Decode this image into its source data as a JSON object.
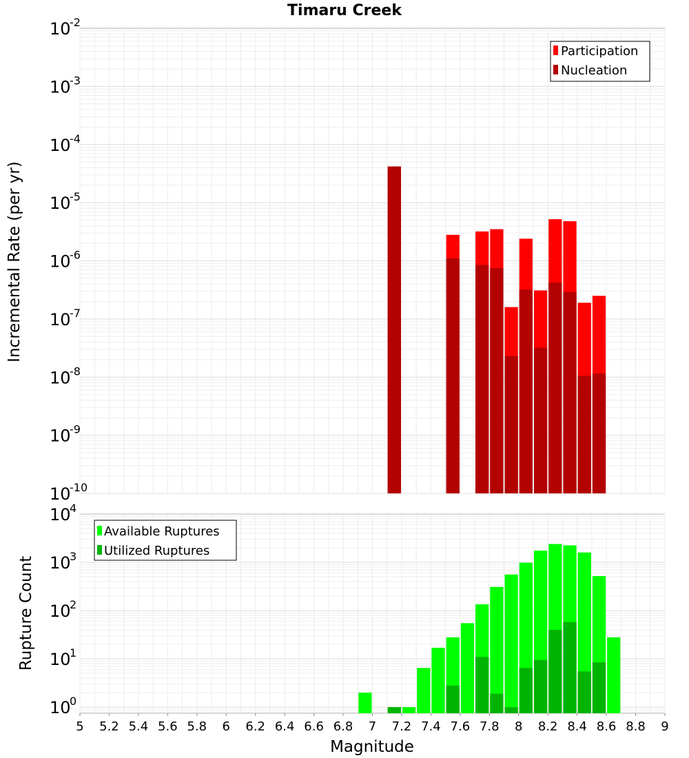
{
  "chart_data": {
    "type": "bar",
    "title": "Timaru Creek",
    "xlabel": "Magnitude",
    "xlim": [
      5,
      9
    ],
    "x_ticks": [
      "5",
      "5.2",
      "5.4",
      "5.6",
      "5.8",
      "6",
      "6.2",
      "6.4",
      "6.6",
      "6.8",
      "7",
      "7.2",
      "7.4",
      "7.6",
      "7.8",
      "8",
      "8.2",
      "8.4",
      "8.6",
      "8.8",
      "9"
    ],
    "bin_width": 0.1,
    "colors": {
      "participation": "#ff0000",
      "nucleation": "#b30000",
      "available": "#00ff00",
      "utilized": "#00b300"
    },
    "panels": [
      {
        "id": "rate",
        "ylabel": "Incremental Rate (per yr)",
        "yscale": "log",
        "ylim_exp": [
          -10,
          -2
        ],
        "y_ticks": [
          {
            "base": "10",
            "exp": "-2"
          },
          {
            "base": "10",
            "exp": "-3"
          },
          {
            "base": "10",
            "exp": "-4"
          },
          {
            "base": "10",
            "exp": "-5"
          },
          {
            "base": "10",
            "exp": "-6"
          },
          {
            "base": "10",
            "exp": "-7"
          },
          {
            "base": "10",
            "exp": "-8"
          },
          {
            "base": "10",
            "exp": "-9"
          },
          {
            "base": "10",
            "exp": "-10"
          }
        ],
        "legend": {
          "position": "top-right",
          "entries": [
            {
              "label": "Participation",
              "color": "#ff0000"
            },
            {
              "label": "Nucleation",
              "color": "#b30000"
            }
          ]
        },
        "series": [
          {
            "name": "Participation",
            "color": "#ff0000",
            "points": [
              {
                "x": 7.15,
                "y": 4.2e-05
              },
              {
                "x": 7.55,
                "y": 2.8e-06
              },
              {
                "x": 7.75,
                "y": 3.2e-06
              },
              {
                "x": 7.85,
                "y": 3.5e-06
              },
              {
                "x": 7.95,
                "y": 1.6e-07
              },
              {
                "x": 8.05,
                "y": 2.4e-06
              },
              {
                "x": 8.15,
                "y": 3.1e-07
              },
              {
                "x": 8.25,
                "y": 5.2e-06
              },
              {
                "x": 8.35,
                "y": 4.8e-06
              },
              {
                "x": 8.45,
                "y": 1.9e-07
              },
              {
                "x": 8.55,
                "y": 2.5e-07
              }
            ]
          },
          {
            "name": "Nucleation",
            "color": "#b30000",
            "points": [
              {
                "x": 7.15,
                "y": 4.2e-05
              },
              {
                "x": 7.55,
                "y": 1.1e-06
              },
              {
                "x": 7.75,
                "y": 8.5e-07
              },
              {
                "x": 7.85,
                "y": 7.5e-07
              },
              {
                "x": 7.95,
                "y": 2.3e-08
              },
              {
                "x": 8.05,
                "y": 3.2e-07
              },
              {
                "x": 8.15,
                "y": 3.2e-08
              },
              {
                "x": 8.25,
                "y": 4.2e-07
              },
              {
                "x": 8.35,
                "y": 2.9e-07
              },
              {
                "x": 8.45,
                "y": 1.05e-08
              },
              {
                "x": 8.55,
                "y": 1.15e-08
              }
            ]
          }
        ]
      },
      {
        "id": "count",
        "ylabel": "Rupture Count",
        "yscale": "log",
        "ylim": [
          0.75,
          10000
        ],
        "y_ticks": [
          {
            "base": "10",
            "exp": "4",
            "value": 10000
          },
          {
            "base": "10",
            "exp": "3",
            "value": 1000
          },
          {
            "base": "10",
            "exp": "2",
            "value": 100
          },
          {
            "base": "10",
            "exp": "1",
            "value": 10
          },
          {
            "base": "10",
            "exp": "0",
            "value": 1
          }
        ],
        "legend": {
          "position": "top-left",
          "entries": [
            {
              "label": "Available Ruptures",
              "color": "#00ff00"
            },
            {
              "label": "Utilized Ruptures",
              "color": "#00b300"
            }
          ]
        },
        "series": [
          {
            "name": "Available Ruptures",
            "color": "#00ff00",
            "points": [
              {
                "x": 6.95,
                "y": 2
              },
              {
                "x": 7.15,
                "y": 1
              },
              {
                "x": 7.25,
                "y": 1
              },
              {
                "x": 7.35,
                "y": 6.5
              },
              {
                "x": 7.45,
                "y": 17
              },
              {
                "x": 7.55,
                "y": 28
              },
              {
                "x": 7.65,
                "y": 55
              },
              {
                "x": 7.75,
                "y": 135
              },
              {
                "x": 7.85,
                "y": 310
              },
              {
                "x": 7.95,
                "y": 560
              },
              {
                "x": 8.05,
                "y": 980
              },
              {
                "x": 8.15,
                "y": 1750
              },
              {
                "x": 8.25,
                "y": 2400
              },
              {
                "x": 8.35,
                "y": 2250
              },
              {
                "x": 8.45,
                "y": 1600
              },
              {
                "x": 8.55,
                "y": 520
              },
              {
                "x": 8.65,
                "y": 28
              }
            ]
          },
          {
            "name": "Utilized Ruptures",
            "color": "#00b300",
            "points": [
              {
                "x": 7.15,
                "y": 1
              },
              {
                "x": 7.55,
                "y": 2.8
              },
              {
                "x": 7.75,
                "y": 11
              },
              {
                "x": 7.85,
                "y": 1.9
              },
              {
                "x": 7.95,
                "y": 1
              },
              {
                "x": 8.05,
                "y": 6.5
              },
              {
                "x": 8.15,
                "y": 9.5
              },
              {
                "x": 8.25,
                "y": 40
              },
              {
                "x": 8.35,
                "y": 58
              },
              {
                "x": 8.45,
                "y": 5.5
              },
              {
                "x": 8.55,
                "y": 8.5
              }
            ]
          }
        ]
      }
    ]
  }
}
